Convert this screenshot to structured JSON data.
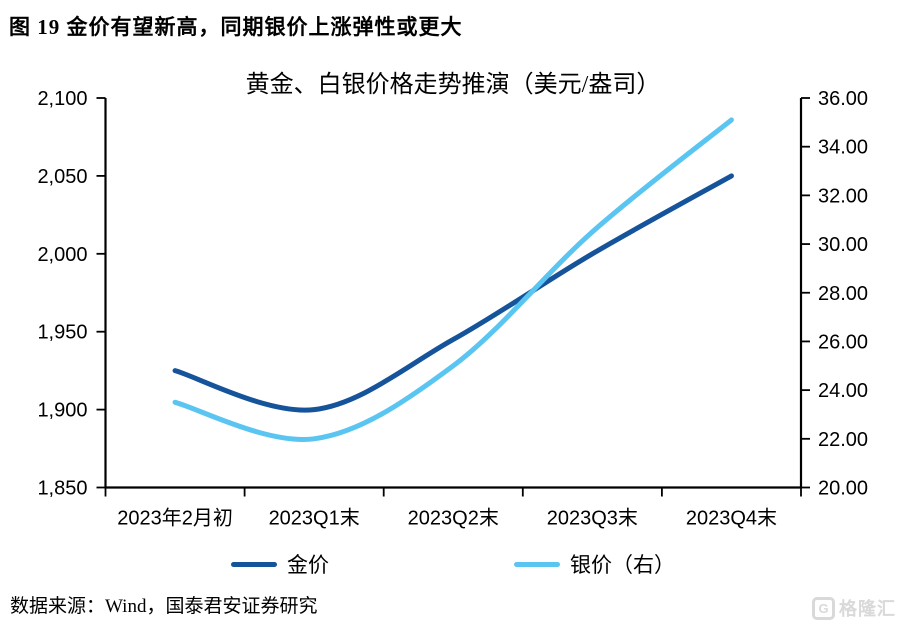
{
  "page": {
    "caption": "图 19 金价有望新高，同期银价上涨弹性或更大",
    "source": "数据来源：Wind，国泰君安证券研究",
    "watermark": {
      "logo_letter": "G",
      "text": "格隆汇"
    }
  },
  "chart_data": {
    "type": "line",
    "title": "黄金、白银价格走势推演（美元/盎司）",
    "categories": [
      "2023年2月初",
      "2023Q1末",
      "2023Q2末",
      "2023Q3末",
      "2023Q4末"
    ],
    "series": [
      {
        "name": "金价",
        "axis": "left",
        "color": "#15539B",
        "values": [
          1925,
          1900,
          1945,
          2000,
          2050
        ]
      },
      {
        "name": "银价（右）",
        "axis": "right",
        "color": "#5BC5F1",
        "values": [
          23.5,
          22.0,
          25.0,
          30.5,
          35.1
        ]
      }
    ],
    "left_axis": {
      "min": 1850,
      "max": 2100,
      "tick_labels": [
        "2,100",
        "2,050",
        "2,000",
        "1,950",
        "1,900",
        "1,850"
      ]
    },
    "right_axis": {
      "min": 20,
      "max": 36,
      "tick_labels": [
        "36.00",
        "34.00",
        "32.00",
        "30.00",
        "28.00",
        "26.00",
        "24.00",
        "22.00",
        "20.00"
      ]
    },
    "legend_position": "bottom",
    "grid": false
  }
}
